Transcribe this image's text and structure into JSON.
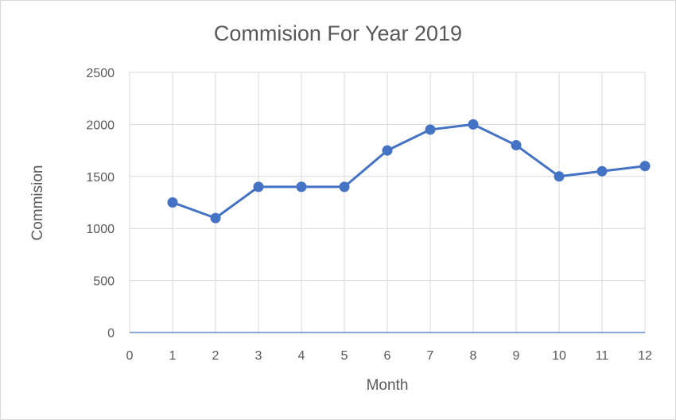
{
  "chart_data": {
    "type": "scatter",
    "title": "Commision For Year 2019",
    "xlabel": "Month",
    "ylabel": "Commision",
    "xlim": [
      0,
      12
    ],
    "ylim": [
      0,
      2500
    ],
    "x_ticks": [
      "0",
      "1",
      "2",
      "3",
      "4",
      "5",
      "6",
      "7",
      "8",
      "9",
      "10",
      "11",
      "12"
    ],
    "y_ticks": [
      "0",
      "500",
      "1000",
      "1500",
      "2000",
      "2500"
    ],
    "grid": true,
    "legend": "none",
    "series": [
      {
        "x": [
          1,
          2,
          3,
          4,
          5,
          6,
          7,
          8,
          9,
          10,
          11,
          12
        ],
        "y": [
          1250,
          1100,
          1400,
          1400,
          1400,
          1750,
          1950,
          2000,
          1800,
          1500,
          1550,
          1600
        ],
        "color": "#4472c4",
        "line": true,
        "markers": true
      }
    ]
  }
}
